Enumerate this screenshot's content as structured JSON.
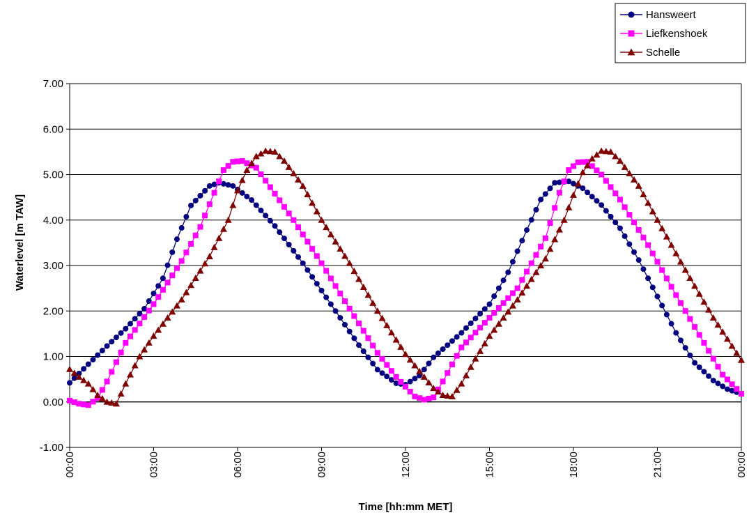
{
  "chart_data": {
    "type": "line",
    "title": "",
    "xlabel": "Time [hh:mm MET]",
    "ylabel": "Waterlevel [m TAW]",
    "xlim": [
      "00:00",
      "00:00"
    ],
    "ylim": [
      -1.0,
      7.0
    ],
    "x_ticks": [
      "00:00",
      "03:00",
      "06:00",
      "09:00",
      "12:00",
      "15:00",
      "18:00",
      "21:00",
      "00:00"
    ],
    "y_ticks": [
      "-1.00",
      "0.00",
      "1.00",
      "2.00",
      "3.00",
      "4.00",
      "5.00",
      "6.00",
      "7.00"
    ],
    "grid": "horizontal",
    "legend_position": "top-right",
    "time_step_minutes": 10,
    "series": [
      {
        "name": "Hansweert",
        "color": "#000080",
        "marker": "circle",
        "points": [
          [
            "00:00",
            0.42
          ],
          [
            "00:40",
            0.83
          ],
          [
            "01:20",
            1.23
          ],
          [
            "02:00",
            1.61
          ],
          [
            "02:40",
            2.05
          ],
          [
            "03:20",
            2.72
          ],
          [
            "03:50",
            3.58
          ],
          [
            "04:20",
            4.32
          ],
          [
            "05:00",
            4.75
          ],
          [
            "05:20",
            4.82
          ],
          [
            "05:50",
            4.75
          ],
          [
            "06:30",
            4.44
          ],
          [
            "07:20",
            3.87
          ],
          [
            "08:20",
            3.05
          ],
          [
            "09:20",
            2.15
          ],
          [
            "10:20",
            1.25
          ],
          [
            "11:00",
            0.71
          ],
          [
            "11:40",
            0.41
          ],
          [
            "12:00",
            0.38
          ],
          [
            "12:30",
            0.58
          ],
          [
            "13:00",
            0.98
          ],
          [
            "14:00",
            1.52
          ],
          [
            "15:00",
            2.15
          ],
          [
            "15:40",
            2.85
          ],
          [
            "16:20",
            3.78
          ],
          [
            "16:50",
            4.45
          ],
          [
            "17:20",
            4.82
          ],
          [
            "17:50",
            4.85
          ],
          [
            "18:20",
            4.7
          ],
          [
            "19:00",
            4.33
          ],
          [
            "19:40",
            3.82
          ],
          [
            "20:20",
            3.12
          ],
          [
            "21:00",
            2.32
          ],
          [
            "21:40",
            1.52
          ],
          [
            "22:20",
            0.86
          ],
          [
            "23:00",
            0.47
          ],
          [
            "23:30",
            0.28
          ],
          [
            "24:00",
            0.18
          ]
        ]
      },
      {
        "name": "Liefkenshoek",
        "color": "#ff00ff",
        "marker": "square",
        "points": [
          [
            "00:00",
            0.03
          ],
          [
            "00:20",
            -0.04
          ],
          [
            "00:40",
            -0.07
          ],
          [
            "01:00",
            0.08
          ],
          [
            "01:20",
            0.45
          ],
          [
            "02:00",
            1.3
          ],
          [
            "03:00",
            2.15
          ],
          [
            "04:00",
            3.1
          ],
          [
            "04:40",
            3.85
          ],
          [
            "05:10",
            4.6
          ],
          [
            "05:30",
            5.1
          ],
          [
            "05:50",
            5.28
          ],
          [
            "06:10",
            5.3
          ],
          [
            "06:40",
            5.15
          ],
          [
            "07:20",
            4.58
          ],
          [
            "08:00",
            4.0
          ],
          [
            "09:00",
            3.05
          ],
          [
            "10:00",
            2.05
          ],
          [
            "11:00",
            1.08
          ],
          [
            "11:40",
            0.55
          ],
          [
            "12:20",
            0.12
          ],
          [
            "12:40",
            0.05
          ],
          [
            "13:00",
            0.1
          ],
          [
            "13:20",
            0.45
          ],
          [
            "14:00",
            1.2
          ],
          [
            "15:00",
            1.85
          ],
          [
            "16:00",
            2.5
          ],
          [
            "17:00",
            3.6
          ],
          [
            "17:30",
            4.6
          ],
          [
            "17:50",
            5.1
          ],
          [
            "18:10",
            5.27
          ],
          [
            "18:30",
            5.28
          ],
          [
            "19:00",
            5.0
          ],
          [
            "19:40",
            4.45
          ],
          [
            "20:40",
            3.45
          ],
          [
            "21:40",
            2.35
          ],
          [
            "22:40",
            1.3
          ],
          [
            "23:20",
            0.6
          ],
          [
            "24:00",
            0.18
          ]
        ]
      },
      {
        "name": "Schelle",
        "color": "#800000",
        "marker": "triangle",
        "points": [
          [
            "00:00",
            0.72
          ],
          [
            "00:20",
            0.55
          ],
          [
            "00:40",
            0.4
          ],
          [
            "01:00",
            0.15
          ],
          [
            "01:20",
            0.0
          ],
          [
            "01:40",
            -0.04
          ],
          [
            "02:00",
            0.4
          ],
          [
            "02:30",
            1.0
          ],
          [
            "03:00",
            1.45
          ],
          [
            "04:00",
            2.25
          ],
          [
            "05:00",
            3.2
          ],
          [
            "05:40",
            4.0
          ],
          [
            "06:00",
            4.65
          ],
          [
            "06:20",
            5.1
          ],
          [
            "06:40",
            5.4
          ],
          [
            "07:00",
            5.52
          ],
          [
            "07:20",
            5.5
          ],
          [
            "07:40",
            5.3
          ],
          [
            "08:20",
            4.75
          ],
          [
            "09:00",
            4.0
          ],
          [
            "10:00",
            3.05
          ],
          [
            "11:00",
            2.0
          ],
          [
            "12:00",
            1.05
          ],
          [
            "12:40",
            0.55
          ],
          [
            "13:00",
            0.3
          ],
          [
            "13:20",
            0.15
          ],
          [
            "13:40",
            0.12
          ],
          [
            "14:00",
            0.4
          ],
          [
            "14:30",
            0.95
          ],
          [
            "15:00",
            1.45
          ],
          [
            "16:00",
            2.25
          ],
          [
            "17:00",
            3.15
          ],
          [
            "17:40",
            4.0
          ],
          [
            "18:00",
            4.55
          ],
          [
            "18:20",
            5.05
          ],
          [
            "18:40",
            5.35
          ],
          [
            "19:00",
            5.52
          ],
          [
            "19:20",
            5.5
          ],
          [
            "19:40",
            5.3
          ],
          [
            "20:20",
            4.75
          ],
          [
            "21:00",
            4.0
          ],
          [
            "22:00",
            2.9
          ],
          [
            "23:00",
            1.85
          ],
          [
            "24:00",
            0.92
          ]
        ]
      }
    ]
  }
}
